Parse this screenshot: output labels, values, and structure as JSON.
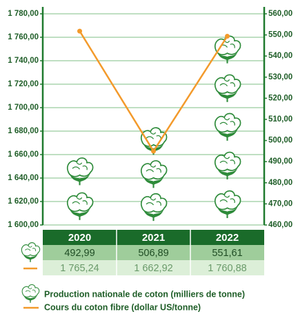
{
  "chart_data": {
    "type": "combo",
    "categories": [
      "2020",
      "2021",
      "2022"
    ],
    "series": [
      {
        "name": "Production nationale de coton (milliers de tonne)",
        "type": "pictogram",
        "axis": "y2",
        "color": "#2e8b3a",
        "values": [
          492.99,
          506.89,
          551.61
        ],
        "value_labels": [
          "492,99",
          "506,89",
          "551,61"
        ]
      },
      {
        "name": "Cours du coton fibre (dollar US/tonne)",
        "type": "line",
        "axis": "y",
        "color": "#f39a2b",
        "values": [
          1765.24,
          1662.92,
          1760.88
        ],
        "value_labels": [
          "1 765,24",
          "1 662,92",
          "1 760,88"
        ]
      }
    ],
    "ylim": [
      1600,
      1780
    ],
    "yticks": [
      {
        "value": 1600,
        "label": "1 600,00"
      },
      {
        "value": 1620,
        "label": "1 620,00"
      },
      {
        "value": 1640,
        "label": "1 640,00"
      },
      {
        "value": 1660,
        "label": "1 660,00"
      },
      {
        "value": 1680,
        "label": "1 680,00"
      },
      {
        "value": 1700,
        "label": "1 700,00"
      },
      {
        "value": 1720,
        "label": "1 720,00"
      },
      {
        "value": 1740,
        "label": "1 740,00"
      },
      {
        "value": 1760,
        "label": "1 760,00"
      },
      {
        "value": 1780,
        "label": "1 780,00"
      }
    ],
    "y2lim": [
      460,
      560
    ],
    "y2ticks": [
      {
        "value": 460,
        "label": "460,00"
      },
      {
        "value": 470,
        "label": "470,00"
      },
      {
        "value": 480,
        "label": "480,00"
      },
      {
        "value": 490,
        "label": "490,00"
      },
      {
        "value": 500,
        "label": "500,00"
      },
      {
        "value": 510,
        "label": "510,00"
      },
      {
        "value": 520,
        "label": "520,00"
      },
      {
        "value": 530,
        "label": "530,00"
      },
      {
        "value": 540,
        "label": "540,00"
      },
      {
        "value": 550,
        "label": "550,00"
      },
      {
        "value": 560,
        "label": "560,00"
      }
    ],
    "grid": true,
    "axis_color": "#1f7a2e",
    "header_color": "#1a6b2a",
    "row_colors": [
      "#9fcd9b",
      "#dcefd8"
    ]
  }
}
